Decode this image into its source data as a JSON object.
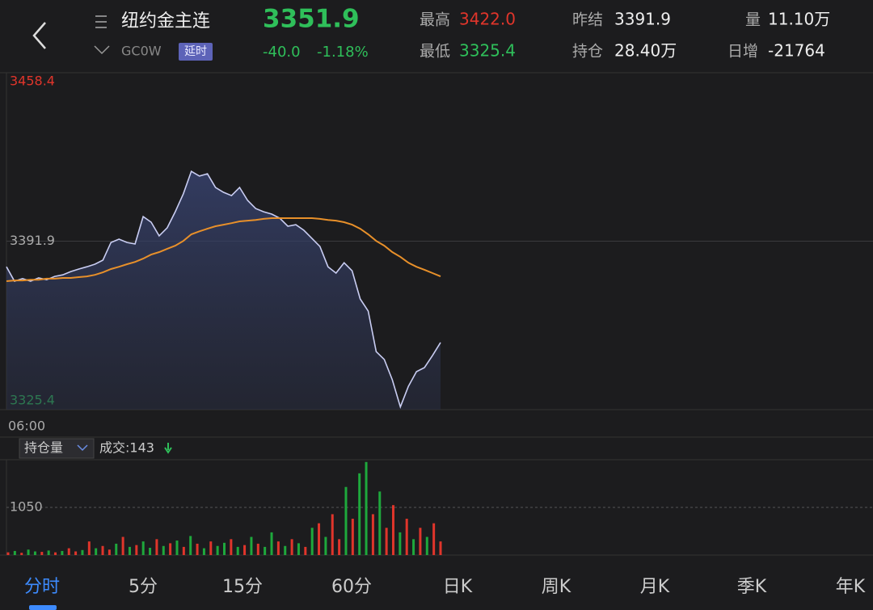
{
  "header": {
    "name": "纽约金主连",
    "code": "GC0W",
    "badge": "延时",
    "price": "3351.9",
    "change": "-40.0",
    "change_pct": "-1.18%",
    "high_label": "最高",
    "high": "3422.0",
    "low_label": "最低",
    "low": "3325.4",
    "settle_label": "昨结",
    "settle": "3391.9",
    "oi_label": "持仓",
    "oi": "28.40万",
    "vol_label": "量",
    "vol": "11.10万",
    "oi_change_label": "日增",
    "oi_change": "-21764"
  },
  "chart_data": [
    {
      "type": "line",
      "ylim": [
        3325.4,
        3458.4
      ],
      "yticks": [
        3458.4,
        3391.9,
        3325.4
      ],
      "time_label": "06:00",
      "series": [
        {
          "color": "#c9cdf2",
          "values": [
            3381.8,
            3376.1,
            3377.1,
            3376.1,
            3377.4,
            3376.7,
            3378.0,
            3378.6,
            3379.9,
            3380.9,
            3381.8,
            3382.8,
            3384.4,
            3391.4,
            3392.7,
            3391.4,
            3390.8,
            3401.6,
            3399.4,
            3394.0,
            3397.2,
            3403.5,
            3410.6,
            3419.5,
            3417.6,
            3418.5,
            3413.1,
            3411.2,
            3409.9,
            3413.1,
            3408.0,
            3404.8,
            3403.5,
            3402.6,
            3401.0,
            3397.8,
            3398.4,
            3396.2,
            3393.0,
            3389.8,
            3381.8,
            3379.3,
            3383.4,
            3380.2,
            3369.1,
            3364.3,
            3348.3,
            3345.2,
            3337.2,
            3326.5,
            3334.6,
            3340.4,
            3342.0,
            3346.8,
            3351.9
          ]
        },
        {
          "color": "#e8902a",
          "values": [
            3376.1,
            3376.4,
            3376.4,
            3376.7,
            3376.7,
            3377.1,
            3377.1,
            3377.4,
            3377.4,
            3377.7,
            3378.0,
            3378.6,
            3379.6,
            3380.9,
            3381.8,
            3382.8,
            3383.7,
            3385.0,
            3386.6,
            3387.6,
            3388.9,
            3390.1,
            3392.0,
            3394.6,
            3395.8,
            3396.8,
            3397.8,
            3398.4,
            3399.0,
            3399.7,
            3400.0,
            3400.3,
            3400.7,
            3401.0,
            3401.0,
            3401.0,
            3401.0,
            3401.0,
            3401.0,
            3400.7,
            3400.3,
            3400.0,
            3399.4,
            3398.4,
            3396.8,
            3394.6,
            3392.0,
            3390.1,
            3387.6,
            3385.7,
            3383.4,
            3381.8,
            3380.6,
            3379.3,
            3378.0
          ]
        }
      ]
    },
    {
      "type": "bar",
      "indicator": "持仓量",
      "label": "成交:143",
      "ylim": [
        0,
        2100
      ],
      "yticks": [
        1050
      ],
      "values": [
        60,
        90,
        50,
        120,
        80,
        70,
        100,
        60,
        90,
        150,
        80,
        110,
        300,
        150,
        200,
        120,
        250,
        400,
        180,
        220,
        300,
        160,
        350,
        200,
        260,
        320,
        180,
        420,
        250,
        150,
        300,
        200,
        270,
        350,
        180,
        220,
        400,
        250,
        180,
        500,
        300,
        200,
        350,
        260,
        180,
        600,
        700,
        400,
        900,
        350,
        1500,
        800,
        1800,
        2050,
        900,
        1400,
        600,
        1100,
        500,
        800,
        350,
        600,
        400,
        700,
        300
      ],
      "colors": [
        "#e0352b",
        "#1ea83c",
        "#e0352b",
        "#1ea83c",
        "#1ea83c",
        "#e0352b",
        "#1ea83c",
        "#e0352b",
        "#1ea83c",
        "#e0352b",
        "#e0352b",
        "#1ea83c",
        "#e0352b",
        "#1ea83c",
        "#e0352b",
        "#e0352b",
        "#1ea83c",
        "#e0352b",
        "#1ea83c",
        "#e0352b",
        "#1ea83c",
        "#1ea83c",
        "#e0352b",
        "#1ea83c",
        "#e0352b",
        "#1ea83c",
        "#e0352b",
        "#1ea83c",
        "#e0352b",
        "#1ea83c",
        "#e0352b",
        "#1ea83c",
        "#1ea83c",
        "#e0352b",
        "#1ea83c",
        "#e0352b",
        "#1ea83c",
        "#e0352b",
        "#1ea83c",
        "#1ea83c",
        "#e0352b",
        "#1ea83c",
        "#e0352b",
        "#1ea83c",
        "#e0352b",
        "#1ea83c",
        "#e0352b",
        "#1ea83c",
        "#e0352b",
        "#e0352b",
        "#1ea83c",
        "#e0352b",
        "#1ea83c",
        "#1ea83c",
        "#e0352b",
        "#1ea83c",
        "#e0352b",
        "#e0352b",
        "#1ea83c",
        "#e0352b",
        "#1ea83c",
        "#e0352b",
        "#1ea83c",
        "#e0352b",
        "#e0352b"
      ]
    }
  ],
  "tabs": [
    "分时",
    "5分",
    "15分",
    "60分",
    "日K",
    "周K",
    "月K",
    "季K",
    "年K"
  ]
}
